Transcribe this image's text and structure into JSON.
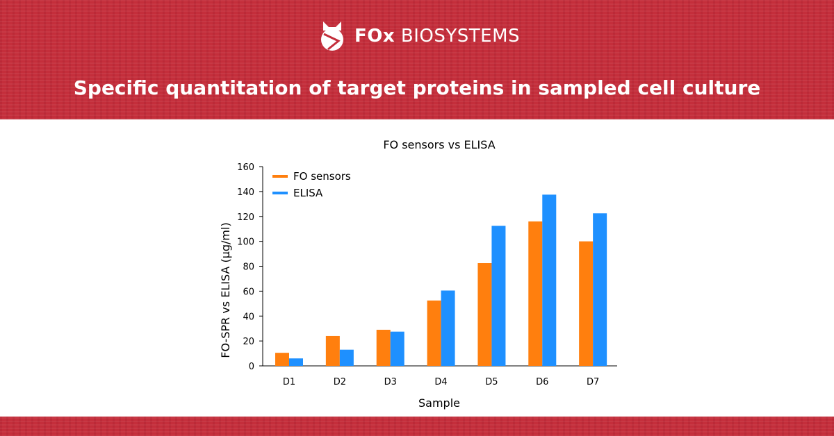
{
  "brand": {
    "name_bold": "FOx",
    "name_rest": "BIOSYSTEMS",
    "logo_icon": "fox-head-logo-icon"
  },
  "headline": "Specific quantitation of target proteins in sampled cell culture",
  "colors": {
    "banner": "#c42e3b",
    "fo_sensors": "#ff7f0e",
    "elisa": "#1e90ff"
  },
  "chart_data": {
    "type": "bar",
    "title": "FO sensors vs ELISA",
    "xlabel": "Sample",
    "ylabel": "FO-SPR vs ELISA (µg/ml)",
    "categories": [
      "D1",
      "D2",
      "D3",
      "D4",
      "D5",
      "D6",
      "D7"
    ],
    "series": [
      {
        "name": "FO sensors",
        "values": [
          10.5,
          24,
          29,
          52.5,
          82.5,
          116,
          100
        ],
        "color": "#ff7f0e"
      },
      {
        "name": "ELISA",
        "values": [
          6,
          13,
          27.5,
          60.5,
          112.5,
          137.5,
          122.5
        ],
        "color": "#1e90ff"
      }
    ],
    "ylim": [
      0,
      160
    ],
    "yticks": [
      "0",
      "20",
      "40",
      "60",
      "80",
      "100",
      "120",
      "140",
      "160"
    ],
    "grid": false,
    "legend_position": "top-left"
  }
}
